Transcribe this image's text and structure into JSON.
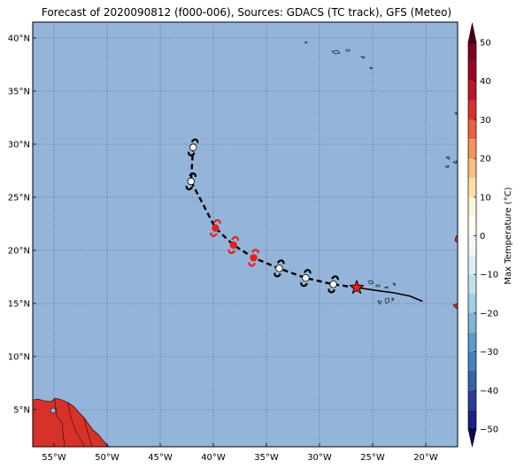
{
  "title": "Forecast of 2020090812 (f000-006), Sources: GDACS (TC track), GFS (Meteo)",
  "map": {
    "lon_range": [
      -57,
      -17
    ],
    "lat_range": [
      1.5,
      41.5
    ],
    "ocean_color": "#94b5d9",
    "land_color": "#d7322a",
    "grid_style": "dotted",
    "lon_ticks": [
      {
        "value": -55,
        "label": "55°W"
      },
      {
        "value": -50,
        "label": "50°W"
      },
      {
        "value": -45,
        "label": "45°W"
      },
      {
        "value": -40,
        "label": "40°W"
      },
      {
        "value": -35,
        "label": "35°W"
      },
      {
        "value": -30,
        "label": "30°W"
      },
      {
        "value": -25,
        "label": "25°W"
      },
      {
        "value": -20,
        "label": "20°W"
      }
    ],
    "lat_ticks": [
      {
        "value": 5,
        "label": "5°N"
      },
      {
        "value": 10,
        "label": "10°N"
      },
      {
        "value": 15,
        "label": "15°N"
      },
      {
        "value": 20,
        "label": "20°N"
      },
      {
        "value": 25,
        "label": "25°N"
      },
      {
        "value": 30,
        "label": "30°N"
      },
      {
        "value": 35,
        "label": "35°N"
      },
      {
        "value": 40,
        "label": "40°N"
      }
    ]
  },
  "track": {
    "observed": [
      {
        "lon": -20.3,
        "lat": 15.2
      },
      {
        "lon": -21.5,
        "lat": 15.7
      },
      {
        "lon": -23.0,
        "lat": 16.0
      },
      {
        "lon": -24.5,
        "lat": 16.2
      },
      {
        "lon": -26.5,
        "lat": 16.5
      }
    ],
    "current": {
      "lon": -26.5,
      "lat": 16.5,
      "marker": "star",
      "color": "#e8201c"
    },
    "forecast": [
      {
        "lon": -26.5,
        "lat": 16.5
      },
      {
        "lon": -28.7,
        "lat": 16.8,
        "color": "#ffffff"
      },
      {
        "lon": -31.3,
        "lat": 17.4,
        "color": "#ffffff"
      },
      {
        "lon": -33.8,
        "lat": 18.3,
        "color": "#ffffff"
      },
      {
        "lon": -36.2,
        "lat": 19.3,
        "color": "#e8201c"
      },
      {
        "lon": -38.1,
        "lat": 20.5,
        "color": "#e8201c"
      },
      {
        "lon": -39.8,
        "lat": 22.1,
        "color": "#e8201c"
      },
      {
        "lon": -42.1,
        "lat": 26.5,
        "color": "#ffffff"
      },
      {
        "lon": -41.9,
        "lat": 29.7,
        "color": "#ffffff"
      }
    ],
    "line_color": "#000000"
  },
  "colorbar": {
    "label": "Max Temperature (°C)",
    "range": [
      -50,
      50
    ],
    "ticks": [
      {
        "value": 50,
        "label": "50"
      },
      {
        "value": 40,
        "label": "40"
      },
      {
        "value": 30,
        "label": "30"
      },
      {
        "value": 20,
        "label": "20"
      },
      {
        "value": 10,
        "label": "10"
      },
      {
        "value": 0,
        "label": "0"
      },
      {
        "value": -10,
        "label": "−10"
      },
      {
        "value": -20,
        "label": "−20"
      },
      {
        "value": -30,
        "label": "−30"
      },
      {
        "value": -40,
        "label": "−40"
      },
      {
        "value": -50,
        "label": "−50"
      }
    ],
    "bands": [
      {
        "from": 45,
        "to": 50,
        "color": "#7f0022"
      },
      {
        "from": 40,
        "to": 45,
        "color": "#9e0326"
      },
      {
        "from": 35,
        "to": 40,
        "color": "#bc1728"
      },
      {
        "from": 30,
        "to": 35,
        "color": "#d7322a"
      },
      {
        "from": 25,
        "to": 30,
        "color": "#ea6241"
      },
      {
        "from": 20,
        "to": 25,
        "color": "#f5935b"
      },
      {
        "from": 15,
        "to": 20,
        "color": "#fcbe7f"
      },
      {
        "from": 10,
        "to": 15,
        "color": "#fde0a4"
      },
      {
        "from": 5,
        "to": 10,
        "color": "#fef6d8"
      },
      {
        "from": 0,
        "to": 5,
        "color": "#fffff0"
      },
      {
        "from": -5,
        "to": 0,
        "color": "#f0f8fb"
      },
      {
        "from": -10,
        "to": -5,
        "color": "#daeef4"
      },
      {
        "from": -15,
        "to": -10,
        "color": "#bfe1ed"
      },
      {
        "from": -20,
        "to": -15,
        "color": "#a2cde3"
      },
      {
        "from": -25,
        "to": -20,
        "color": "#7fb5d8"
      },
      {
        "from": -30,
        "to": -25,
        "color": "#5d9bca"
      },
      {
        "from": -35,
        "to": -30,
        "color": "#4780bb"
      },
      {
        "from": -40,
        "to": -35,
        "color": "#3862a9"
      },
      {
        "from": -45,
        "to": -40,
        "color": "#293f96"
      },
      {
        "from": -50,
        "to": -45,
        "color": "#1c1f85"
      }
    ],
    "overflow_top_color": "#4d0014",
    "overflow_bottom_color": "#0a0a5a"
  }
}
